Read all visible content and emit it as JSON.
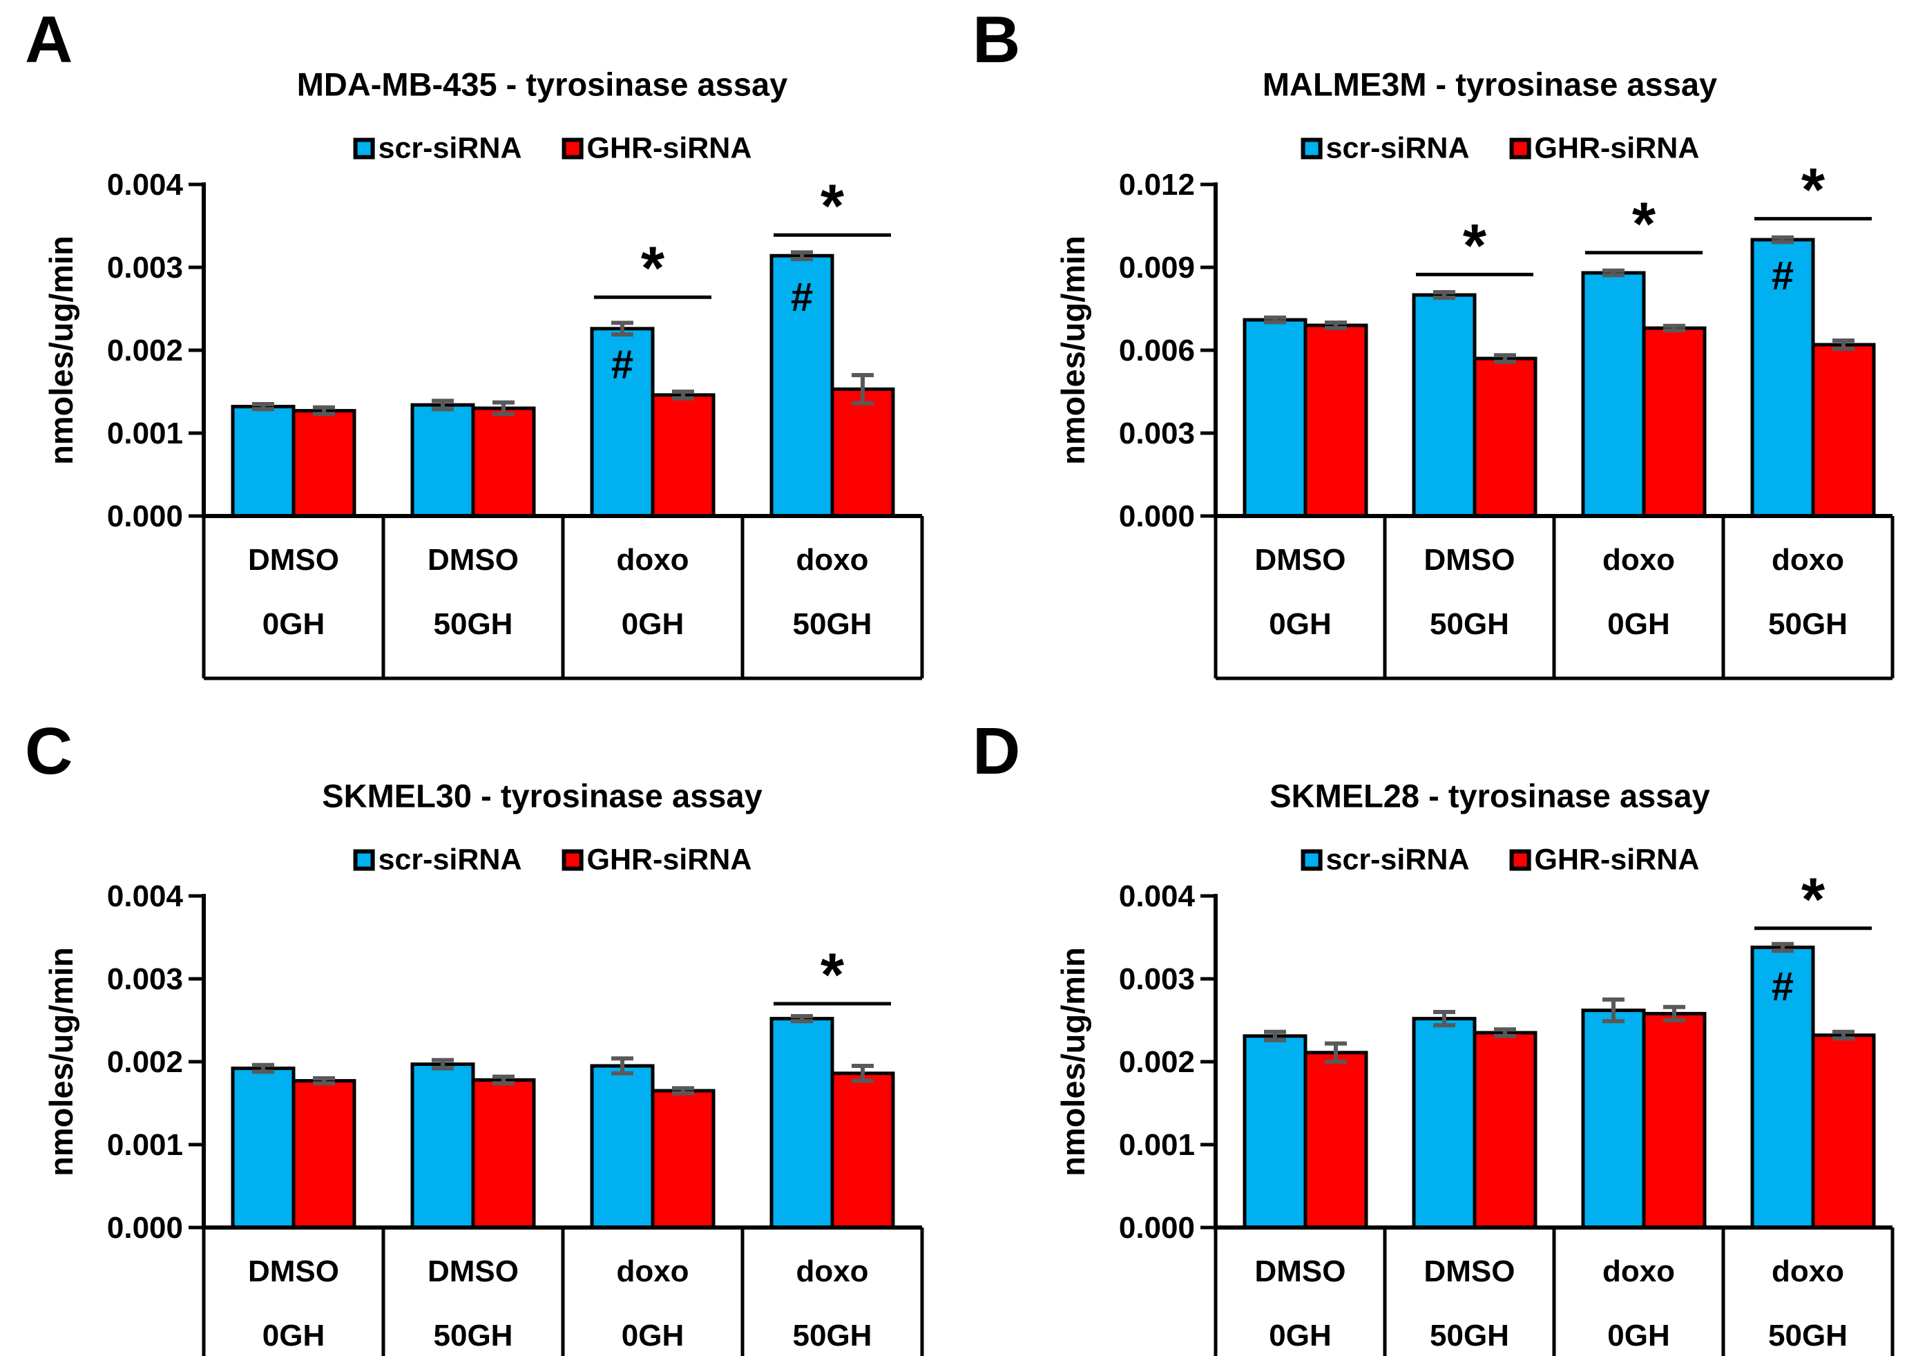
{
  "figure": {
    "background": "#FFFFFF",
    "colors": {
      "bar_blue": "#00B0F0",
      "bar_red": "#FF0000",
      "error_bar": "#595959",
      "axis": "#000000",
      "text": "#000000"
    }
  },
  "panels": [
    {
      "letter": "A",
      "title": "MDA-MB-435 - tyrosinase assay",
      "chart_data": {
        "type": "bar",
        "title": "MDA-MB-435 - tyrosinase assay",
        "ylabel": "nmoles/ug/min",
        "xlabel": "",
        "ylim": [
          0,
          0.004
        ],
        "ytick_step": 0.001,
        "ytick_labels": [
          "0.000",
          "0.001",
          "0.002",
          "0.003",
          "0.004"
        ],
        "grid": false,
        "legend_position": "top-center",
        "categories": [
          {
            "line1": "DMSO",
            "line2": "0GH"
          },
          {
            "line1": "DMSO",
            "line2": "50GH"
          },
          {
            "line1": "doxo",
            "line2": "0GH"
          },
          {
            "line1": "doxo",
            "line2": "50GH"
          }
        ],
        "series": [
          {
            "name": "scr-siRNA",
            "color": "#00B0F0",
            "values": [
              0.00132,
              0.00134,
              0.00226,
              0.00314
            ],
            "errors": [
              3e-05,
              5e-05,
              7e-05,
              4e-05
            ]
          },
          {
            "name": "GHR-siRNA",
            "color": "#FF0000",
            "values": [
              0.00127,
              0.0013,
              0.00146,
              0.00153
            ],
            "errors": [
              4e-05,
              7e-05,
              4e-05,
              0.00017
            ]
          }
        ],
        "significance": [
          {
            "group": 2,
            "symbol": "*",
            "line_y": 0.00264
          },
          {
            "group": 3,
            "symbol": "*",
            "line_y": 0.00339
          }
        ],
        "hash_annotations": [
          {
            "series": 0,
            "group": 2,
            "symbol": "#",
            "y": 0.00183
          },
          {
            "series": 0,
            "group": 3,
            "symbol": "#",
            "y": 0.00264
          }
        ]
      }
    },
    {
      "letter": "B",
      "title": "MALME3M - tyrosinase assay",
      "chart_data": {
        "type": "bar",
        "title": "MALME3M - tyrosinase assay",
        "ylabel": "nmoles/ug/min",
        "xlabel": "",
        "ylim": [
          0,
          0.012
        ],
        "ytick_step": 0.003,
        "ytick_labels": [
          "0.000",
          "0.003",
          "0.006",
          "0.009",
          "0.012"
        ],
        "grid": false,
        "legend_position": "top-center",
        "categories": [
          {
            "line1": "DMSO",
            "line2": "0GH"
          },
          {
            "line1": "DMSO",
            "line2": "50GH"
          },
          {
            "line1": "doxo",
            "line2": "0GH"
          },
          {
            "line1": "doxo",
            "line2": "50GH"
          }
        ],
        "series": [
          {
            "name": "scr-siRNA",
            "color": "#00B0F0",
            "values": [
              0.0071,
              0.008,
              0.0088,
              0.01
            ],
            "errors": [
              8e-05,
              0.0001,
              8e-05,
              8e-05
            ]
          },
          {
            "name": "GHR-siRNA",
            "color": "#FF0000",
            "values": [
              0.0069,
              0.0057,
              0.0068,
              0.0062
            ],
            "errors": [
              0.0001,
              0.00012,
              8e-05,
              0.00015
            ]
          }
        ],
        "significance": [
          {
            "group": 1,
            "symbol": "*",
            "line_y": 0.00874
          },
          {
            "group": 2,
            "symbol": "*",
            "line_y": 0.00953
          },
          {
            "group": 3,
            "symbol": "*",
            "line_y": 0.01076
          }
        ],
        "hash_annotations": [
          {
            "series": 0,
            "group": 3,
            "symbol": "#",
            "y": 0.0087
          }
        ]
      }
    },
    {
      "letter": "C",
      "title": "SKMEL30 - tyrosinase assay",
      "chart_data": {
        "type": "bar",
        "title": "SKMEL30 - tyrosinase assay",
        "ylabel": "nmoles/ug/min",
        "xlabel": "",
        "ylim": [
          0,
          0.004
        ],
        "ytick_step": 0.001,
        "ytick_labels": [
          "0.000",
          "0.001",
          "0.002",
          "0.003",
          "0.004"
        ],
        "grid": false,
        "legend_position": "top-center",
        "categories": [
          {
            "line1": "DMSO",
            "line2": "0GH"
          },
          {
            "line1": "DMSO",
            "line2": "50GH"
          },
          {
            "line1": "doxo",
            "line2": "0GH"
          },
          {
            "line1": "doxo",
            "line2": "50GH"
          }
        ],
        "series": [
          {
            "name": "scr-siRNA",
            "color": "#00B0F0",
            "values": [
              0.00192,
              0.00197,
              0.00195,
              0.00252
            ],
            "errors": [
              4e-05,
              5e-05,
              9e-05,
              3e-05
            ]
          },
          {
            "name": "GHR-siRNA",
            "color": "#FF0000",
            "values": [
              0.00177,
              0.00178,
              0.00165,
              0.00186
            ],
            "errors": [
              3e-05,
              4e-05,
              3e-05,
              9e-05
            ]
          }
        ],
        "significance": [
          {
            "group": 3,
            "symbol": "*",
            "line_y": 0.0027
          }
        ],
        "hash_annotations": []
      }
    },
    {
      "letter": "D",
      "title": "SKMEL28 - tyrosinase assay",
      "chart_data": {
        "type": "bar",
        "title": "SKMEL28 - tyrosinase assay",
        "ylabel": "nmoles/ug/min",
        "xlabel": "",
        "ylim": [
          0,
          0.004
        ],
        "ytick_step": 0.001,
        "ytick_labels": [
          "0.000",
          "0.001",
          "0.002",
          "0.003",
          "0.004"
        ],
        "grid": false,
        "legend_position": "top-center",
        "categories": [
          {
            "line1": "DMSO",
            "line2": "0GH"
          },
          {
            "line1": "DMSO",
            "line2": "50GH"
          },
          {
            "line1": "doxo",
            "line2": "0GH"
          },
          {
            "line1": "doxo",
            "line2": "50GH"
          }
        ],
        "series": [
          {
            "name": "scr-siRNA",
            "color": "#00B0F0",
            "values": [
              0.00231,
              0.00252,
              0.00262,
              0.00338
            ],
            "errors": [
              5e-05,
              8e-05,
              0.00013,
              4e-05
            ]
          },
          {
            "name": "GHR-siRNA",
            "color": "#FF0000",
            "values": [
              0.00211,
              0.00235,
              0.00258,
              0.00232
            ],
            "errors": [
              0.00011,
              4e-05,
              8e-05,
              4e-05
            ]
          }
        ],
        "significance": [
          {
            "group": 3,
            "symbol": "*",
            "line_y": 0.00361
          }
        ],
        "hash_annotations": [
          {
            "series": 0,
            "group": 3,
            "symbol": "#",
            "y": 0.00291
          }
        ]
      }
    }
  ]
}
